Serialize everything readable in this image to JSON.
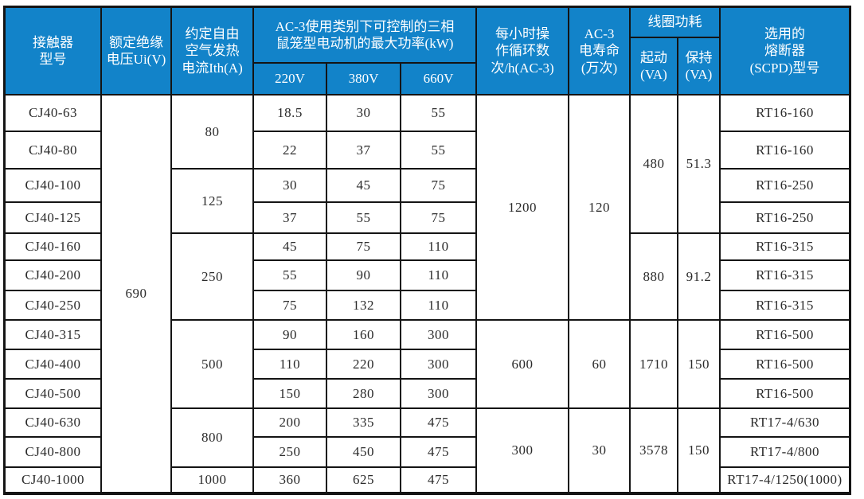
{
  "colors": {
    "header_bg": "#1283c9",
    "border": "#141414",
    "body_text": "#2b2b2b",
    "header_text": "#ffffff"
  },
  "table": {
    "header": {
      "model": "接触器\n型号",
      "voltage": "额定绝缘\n电压Ui(V)",
      "ith": "约定自由\n空气发热\n电流Ith(A)",
      "ac3_power": "AC-3使用类别下可控制的三相\n鼠笼型电动机的最大功率(kW)",
      "v220": "220V",
      "v380": "380V",
      "v660": "660V",
      "cycles": "每小时操\n作循环数\n次/h(AC-3)",
      "life": "AC-3\n电寿命\n(万次)",
      "coil": "线圈功耗",
      "coil_start": "起动\n(VA)",
      "coil_hold": "保持\n(VA)",
      "fuse": "选用的\n熔断器\n(SCPD)型号"
    },
    "voltage_value": "690",
    "models": [
      "CJ40-63",
      "CJ40-80",
      "CJ40-100",
      "CJ40-125",
      "CJ40-160",
      "CJ40-200",
      "CJ40-250",
      "CJ40-315",
      "CJ40-400",
      "CJ40-500",
      "CJ40-630",
      "CJ40-800",
      "CJ40-1000"
    ],
    "ith": [
      "80",
      "125",
      "250",
      "500",
      "800",
      "1000"
    ],
    "p220": [
      "18.5",
      "22",
      "30",
      "37",
      "45",
      "55",
      "75",
      "90",
      "110",
      "150",
      "200",
      "250",
      "360"
    ],
    "p380": [
      "30",
      "37",
      "45",
      "55",
      "75",
      "90",
      "132",
      "160",
      "220",
      "280",
      "335",
      "450",
      "625"
    ],
    "p660": [
      "55",
      "55",
      "75",
      "75",
      "110",
      "110",
      "110",
      "300",
      "300",
      "300",
      "475",
      "475",
      "475"
    ],
    "cycles": [
      "1200",
      "600",
      "300"
    ],
    "life": [
      "120",
      "60",
      "30"
    ],
    "coil_start": [
      "480",
      "880",
      "1710",
      "3578"
    ],
    "coil_hold": [
      "51.3",
      "91.2",
      "150",
      "150"
    ],
    "fuses": [
      "RT16-160",
      "RT16-160",
      "RT16-250",
      "RT16-250",
      "RT16-315",
      "RT16-315",
      "RT16-315",
      "RT16-500",
      "RT16-500",
      "RT16-500",
      "RT17-4/630",
      "RT17-4/800",
      "RT17-4/1250(1000)"
    ]
  }
}
